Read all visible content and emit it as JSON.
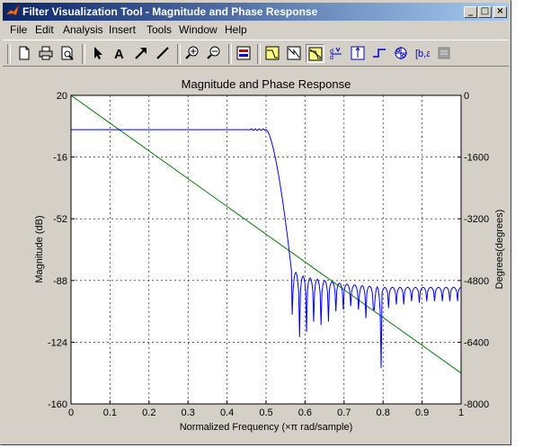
{
  "window": {
    "title": "Filter Visualization Tool - Magnitude and Phase Response",
    "controls": {
      "minimize": "_",
      "maximize": "□",
      "close": "×"
    }
  },
  "menu": [
    "File",
    "Edit",
    "Analysis",
    "Insert",
    "Tools",
    "Window",
    "Help"
  ],
  "toolbar": {
    "buttons": [
      "new-icon",
      "print-icon",
      "print-preview-icon",
      "arrow-icon",
      "text-icon",
      "arrow-tool-icon",
      "line-icon",
      "zoom-in-icon",
      "zoom-out-icon",
      "filter-spec-icon",
      "magnitude-response-icon",
      "phase-response-icon",
      "magnitude-phase-icon",
      "group-delay-icon",
      "impulse-response-icon",
      "step-response-icon",
      "pole-zero-icon",
      "coefficients-icon",
      "info-icon"
    ],
    "pressed": "magnitude-phase-icon"
  },
  "chart_data": {
    "type": "line",
    "title": "Magnitude and Phase Response",
    "xlabel": "Normalized Frequency  (×π rad/sample)",
    "ylabel": "Magnitude (dB)",
    "y2label": "Degrees(degrees)",
    "xlim": [
      0,
      1
    ],
    "ylim": [
      -160,
      20
    ],
    "y2lim": [
      -8000,
      0
    ],
    "xticks": [
      "0",
      "0.1",
      "0.2",
      "0.3",
      "0.4",
      "0.5",
      "0.6",
      "0.7",
      "0.8",
      "0.9",
      "1"
    ],
    "yticks": [
      "20",
      "-16",
      "-52",
      "-88",
      "-124",
      "-160"
    ],
    "y2ticks": [
      "0",
      "-1600",
      "-3200",
      "-4800",
      "-6400",
      "-8000"
    ],
    "grid": true,
    "colors": {
      "magnitude": "#0000ff",
      "phase": "#008000"
    },
    "magnitude": {
      "passband_db": 0,
      "passband_edge": 0.49,
      "transition_end": 0.565,
      "ripple_start": 0.46,
      "ripple_end": 0.5,
      "ripple_db": 0.4,
      "lobe_peaks": [
        [
          0.565,
          -82
        ],
        [
          0.6,
          -86
        ],
        [
          0.7,
          -90
        ],
        [
          0.8,
          -92
        ],
        [
          0.9,
          -92
        ],
        [
          1.0,
          -92
        ]
      ],
      "nulls": [
        0.567,
        0.586,
        0.604,
        0.622,
        0.641,
        0.66,
        0.679,
        0.698,
        0.717,
        0.737,
        0.756,
        0.775,
        0.795,
        0.814,
        0.834,
        0.853,
        0.873,
        0.893,
        0.912,
        0.932,
        0.952,
        0.971,
        0.991
      ],
      "null_depths": [
        -108,
        -121,
        -118,
        -112,
        -114,
        -112,
        -106,
        -105,
        -103,
        -105,
        -110,
        -105,
        -139,
        -104,
        -102,
        -102,
        -100,
        -101,
        -100,
        -100,
        -100,
        -100,
        -100
      ]
    },
    "phase": {
      "x": [
        0,
        1
      ],
      "degrees": [
        0,
        -7200
      ]
    }
  }
}
